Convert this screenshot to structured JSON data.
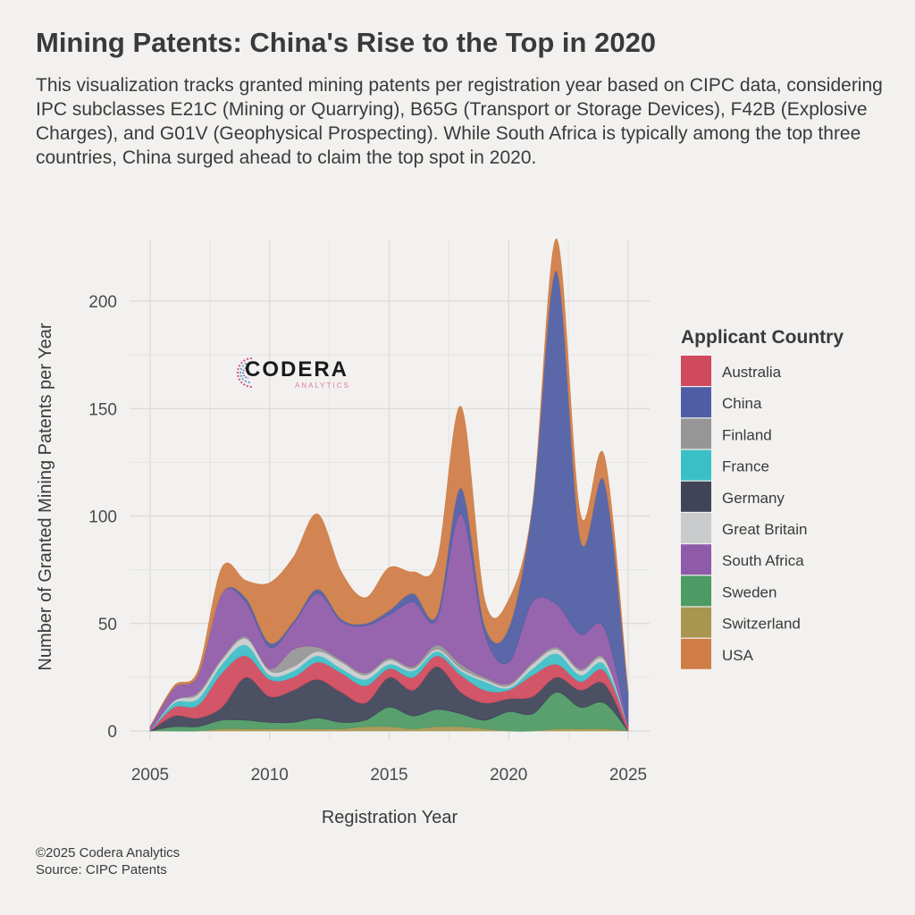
{
  "title": "Mining Patents: China's Rise to the Top in 2020",
  "subtitle": "This visualization tracks granted mining patents per registration year based on CIPC data, considering IPC subclasses E21C (Mining or Quarrying), B65G (Transport or Storage Devices), F42B (Explosive Charges), and G01V (Geophysical Prospecting). While South Africa is typically among the top three countries, China surged ahead to claim the top spot in 2020.",
  "caption": {
    "copyright": "©2025 Codera Analytics",
    "source": "Source: CIPC Patents"
  },
  "logo": {
    "word": "CODERA",
    "sub": "ANALYTICS"
  },
  "chart_data": {
    "type": "area",
    "subtype": "stream",
    "xlabel": "Registration Year",
    "ylabel": "Number of Granted Mining Patents per Year",
    "xlim": [
      2005,
      2025
    ],
    "ylim": [
      0,
      220
    ],
    "xticks": [
      2005,
      2010,
      2015,
      2020,
      2025
    ],
    "yticks": [
      0,
      50,
      100,
      150,
      200
    ],
    "grid": true,
    "legend_title": "Applicant Country",
    "legend_position": "right",
    "x": [
      2005,
      2006,
      2007,
      2008,
      2009,
      2010,
      2011,
      2012,
      2013,
      2014,
      2015,
      2016,
      2017,
      2018,
      2019,
      2020,
      2021,
      2022,
      2023,
      2024,
      2025
    ],
    "series": [
      {
        "name": "Switzerland",
        "color": "#a8964f",
        "values": [
          0,
          0,
          0,
          1,
          1,
          1,
          1,
          1,
          1,
          2,
          2,
          1,
          2,
          2,
          1,
          0,
          0,
          1,
          1,
          1,
          0
        ]
      },
      {
        "name": "Sweden",
        "color": "#4d9a64",
        "values": [
          0,
          2,
          2,
          4,
          4,
          3,
          3,
          5,
          3,
          3,
          9,
          6,
          8,
          6,
          4,
          9,
          8,
          17,
          10,
          12,
          0
        ]
      },
      {
        "name": "Germany",
        "color": "#3f4458",
        "values": [
          0,
          5,
          4,
          6,
          20,
          12,
          15,
          18,
          14,
          8,
          14,
          12,
          20,
          10,
          8,
          6,
          8,
          7,
          8,
          9,
          0
        ]
      },
      {
        "name": "Australia",
        "color": "#d04a5e",
        "values": [
          0,
          4,
          6,
          16,
          10,
          8,
          6,
          8,
          9,
          8,
          4,
          6,
          5,
          8,
          6,
          4,
          10,
          6,
          4,
          6,
          2
        ]
      },
      {
        "name": "France",
        "color": "#3bbfc7",
        "values": [
          0,
          2,
          3,
          4,
          5,
          2,
          3,
          3,
          2,
          3,
          2,
          3,
          2,
          2,
          4,
          1,
          3,
          5,
          3,
          3,
          0
        ]
      },
      {
        "name": "Great Britain",
        "color": "#c9cbcd",
        "values": [
          0,
          1,
          2,
          2,
          3,
          2,
          2,
          2,
          3,
          2,
          2,
          1,
          1,
          1,
          1,
          1,
          2,
          2,
          2,
          2,
          0
        ]
      },
      {
        "name": "Finland",
        "color": "#969696",
        "values": [
          0,
          0,
          1,
          1,
          1,
          1,
          8,
          2,
          1,
          1,
          1,
          1,
          2,
          2,
          1,
          1,
          1,
          1,
          1,
          1,
          0
        ]
      },
      {
        "name": "South Africa",
        "color": "#8f5aa8",
        "values": [
          2,
          6,
          8,
          30,
          16,
          10,
          12,
          25,
          18,
          22,
          20,
          30,
          12,
          70,
          20,
          10,
          28,
          20,
          16,
          14,
          0
        ]
      },
      {
        "name": "China",
        "color": "#4f5ea4",
        "values": [
          0,
          0,
          0,
          0,
          2,
          2,
          1,
          2,
          1,
          1,
          2,
          4,
          2,
          12,
          4,
          16,
          45,
          155,
          44,
          68,
          16
        ]
      },
      {
        "name": "USA",
        "color": "#d07d46",
        "values": [
          0,
          1,
          2,
          12,
          8,
          28,
          30,
          35,
          22,
          12,
          20,
          10,
          25,
          38,
          12,
          13,
          0,
          15,
          12,
          12,
          0
        ]
      }
    ],
    "legend_order": [
      "Australia",
      "China",
      "Finland",
      "France",
      "Germany",
      "Great Britain",
      "South Africa",
      "Sweden",
      "Switzerland",
      "USA"
    ]
  }
}
